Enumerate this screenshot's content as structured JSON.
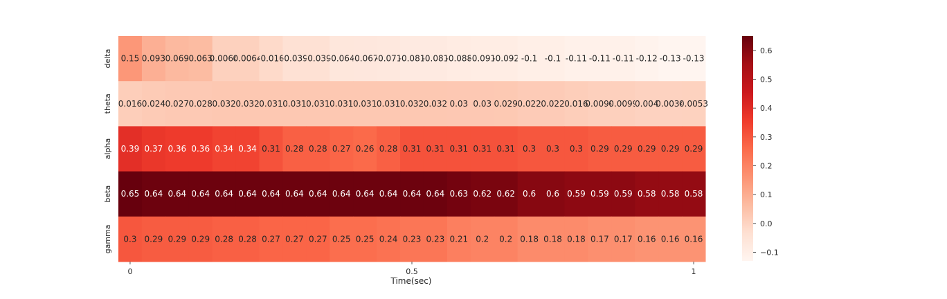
{
  "chart_data": {
    "type": "heatmap",
    "xlabel": "Time(sec)",
    "x_ticks": [
      {
        "label": "0",
        "position": 0
      },
      {
        "label": "0.5",
        "position": 0.5
      },
      {
        "label": "1",
        "position": 1
      }
    ],
    "y_categories": [
      "delta",
      "theta",
      "alpha",
      "beta",
      "gamma"
    ],
    "columns": 25,
    "values": [
      [
        0.15,
        0.093,
        0.069,
        0.063,
        0.0064,
        0.0064,
        -0.016,
        -0.039,
        -0.039,
        -0.064,
        -0.067,
        -0.071,
        -0.081,
        -0.081,
        -0.088,
        -0.091,
        -0.092,
        -0.1,
        -0.1,
        -0.11,
        -0.11,
        -0.11,
        -0.12,
        -0.13,
        -0.13
      ],
      [
        0.016,
        0.024,
        0.027,
        0.028,
        0.032,
        0.032,
        0.031,
        0.031,
        0.031,
        0.031,
        0.031,
        0.031,
        0.032,
        0.032,
        0.03,
        0.03,
        0.029,
        0.022,
        0.022,
        0.016,
        0.0099,
        0.0099,
        0.004,
        0.0034,
        0.0053
      ],
      [
        0.39,
        0.37,
        0.36,
        0.36,
        0.34,
        0.34,
        0.31,
        0.28,
        0.28,
        0.27,
        0.26,
        0.28,
        0.31,
        0.31,
        0.31,
        0.31,
        0.31,
        0.3,
        0.3,
        0.3,
        0.29,
        0.29,
        0.29,
        0.29,
        0.29
      ],
      [
        0.65,
        0.64,
        0.64,
        0.64,
        0.64,
        0.64,
        0.64,
        0.64,
        0.64,
        0.64,
        0.64,
        0.64,
        0.64,
        0.64,
        0.63,
        0.62,
        0.62,
        0.6,
        0.6,
        0.59,
        0.59,
        0.59,
        0.58,
        0.58,
        0.58
      ],
      [
        0.3,
        0.29,
        0.29,
        0.29,
        0.28,
        0.28,
        0.27,
        0.27,
        0.27,
        0.25,
        0.25,
        0.24,
        0.23,
        0.23,
        0.21,
        0.2,
        0.2,
        0.18,
        0.18,
        0.18,
        0.17,
        0.17,
        0.16,
        0.16,
        0.16
      ]
    ],
    "colorbar": {
      "colormap": "Reds",
      "vmin": -0.13,
      "vmax": 0.65,
      "ticks": [
        -0.1,
        0.0,
        0.1,
        0.2,
        0.3,
        0.4,
        0.5,
        0.6
      ],
      "tick_labels": [
        "−0.1",
        "0.0",
        "0.1",
        "0.2",
        "0.3",
        "0.4",
        "0.5",
        "0.6"
      ]
    }
  }
}
